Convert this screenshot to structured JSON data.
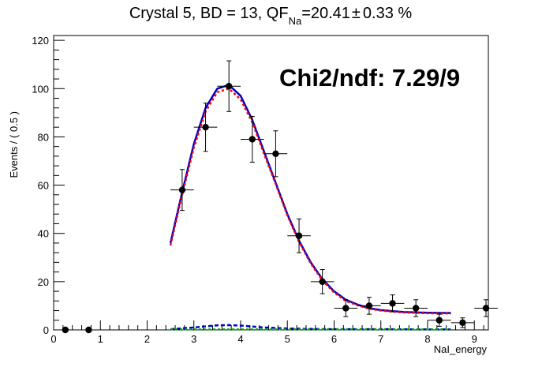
{
  "chart_data": {
    "type": "scatter",
    "title": {
      "prefix": "Crystal 5, BD = 13, QF",
      "subscript": "Na",
      "suffix": "=20.41",
      "pm": "±",
      "error": "0.33 %"
    },
    "xlabel": "NaI_energy",
    "ylabel": "Events / ( 0.5 )",
    "annotation": "Chi2/ndf: 7.29/9",
    "xlim": [
      0,
      9.3
    ],
    "ylim": [
      0,
      122
    ],
    "x_ticks": [
      0,
      1,
      2,
      3,
      4,
      5,
      6,
      7,
      8,
      9
    ],
    "y_ticks": [
      0,
      20,
      40,
      60,
      80,
      100,
      120
    ],
    "grid": false,
    "legend": "none",
    "series": [
      {
        "kind": "data",
        "color": "#000000",
        "points": [
          {
            "x": 0.25,
            "y": 0,
            "xerr": 0.25,
            "yerr": 0
          },
          {
            "x": 0.75,
            "y": 0,
            "xerr": 0.25,
            "yerr": 0
          },
          {
            "x": 2.75,
            "y": 58,
            "xerr": 0.25,
            "yerr": 8.5
          },
          {
            "x": 3.25,
            "y": 84,
            "xerr": 0.25,
            "yerr": 10
          },
          {
            "x": 3.75,
            "y": 101,
            "xerr": 0.25,
            "yerr": 10.5
          },
          {
            "x": 4.25,
            "y": 79,
            "xerr": 0.25,
            "yerr": 9.5
          },
          {
            "x": 4.75,
            "y": 73,
            "xerr": 0.25,
            "yerr": 9.5
          },
          {
            "x": 5.25,
            "y": 39,
            "xerr": 0.25,
            "yerr": 7
          },
          {
            "x": 5.75,
            "y": 20,
            "xerr": 0.25,
            "yerr": 5
          },
          {
            "x": 6.25,
            "y": 9,
            "xerr": 0.25,
            "yerr": 3.5
          },
          {
            "x": 6.75,
            "y": 10,
            "xerr": 0.25,
            "yerr": 3.5
          },
          {
            "x": 7.25,
            "y": 11,
            "xerr": 0.25,
            "yerr": 3.5
          },
          {
            "x": 7.75,
            "y": 9,
            "xerr": 0.25,
            "yerr": 3.5
          },
          {
            "x": 8.25,
            "y": 4,
            "xerr": 0.25,
            "yerr": 2.5
          },
          {
            "x": 8.75,
            "y": 3,
            "xerr": 0.25,
            "yerr": 2
          },
          {
            "x": 9.25,
            "y": 9,
            "xerr": 0.25,
            "yerr": 3.5
          }
        ]
      },
      {
        "kind": "total-fit",
        "color": "#0000cc",
        "style": "solid",
        "points": [
          [
            2.5,
            36
          ],
          [
            2.75,
            57
          ],
          [
            3.0,
            77
          ],
          [
            3.25,
            92
          ],
          [
            3.5,
            100
          ],
          [
            3.75,
            101.5
          ],
          [
            4.0,
            97
          ],
          [
            4.25,
            87
          ],
          [
            4.5,
            74
          ],
          [
            4.75,
            61
          ],
          [
            5.0,
            48
          ],
          [
            5.25,
            37
          ],
          [
            5.5,
            28
          ],
          [
            5.75,
            21
          ],
          [
            6.0,
            16
          ],
          [
            6.25,
            12.5
          ],
          [
            6.5,
            10.5
          ],
          [
            6.75,
            9
          ],
          [
            7.0,
            8.2
          ],
          [
            7.5,
            7.4
          ],
          [
            8.0,
            7.1
          ],
          [
            8.5,
            7.0
          ]
        ]
      },
      {
        "kind": "signal-component",
        "color": "#ff0000",
        "style": "dotted",
        "points": [
          [
            2.5,
            35
          ],
          [
            2.75,
            56
          ],
          [
            3.0,
            75.5
          ],
          [
            3.25,
            90.5
          ],
          [
            3.5,
            98.5
          ],
          [
            3.75,
            100
          ],
          [
            4.0,
            95.5
          ],
          [
            4.25,
            86
          ],
          [
            4.5,
            73
          ],
          [
            4.75,
            60.5
          ],
          [
            5.0,
            47.5
          ],
          [
            5.25,
            36.5
          ],
          [
            5.5,
            27.5
          ],
          [
            5.75,
            20.5
          ],
          [
            6.0,
            15.5
          ],
          [
            6.25,
            12
          ],
          [
            6.5,
            10.2
          ],
          [
            6.75,
            8.8
          ],
          [
            7.0,
            8
          ],
          [
            7.5,
            7.2
          ],
          [
            8.0,
            6.9
          ],
          [
            8.5,
            6.8
          ]
        ]
      },
      {
        "kind": "background-component",
        "color": "#0000cc",
        "style": "dashed",
        "points": [
          [
            2.5,
            0.3
          ],
          [
            3.0,
            1.0
          ],
          [
            3.5,
            1.9
          ],
          [
            3.75,
            2.0
          ],
          [
            4.0,
            1.8
          ],
          [
            4.5,
            1.0
          ],
          [
            5.0,
            0.6
          ],
          [
            5.5,
            0.4
          ],
          [
            6.0,
            0.3
          ],
          [
            6.5,
            0.3
          ],
          [
            7.0,
            0.3
          ],
          [
            8.0,
            0.2
          ],
          [
            8.5,
            0.2
          ]
        ]
      },
      {
        "kind": "baseline-component",
        "color": "#00aa00",
        "style": "dotted",
        "points": [
          [
            2.5,
            0.2
          ],
          [
            8.5,
            0.2
          ]
        ]
      }
    ]
  }
}
